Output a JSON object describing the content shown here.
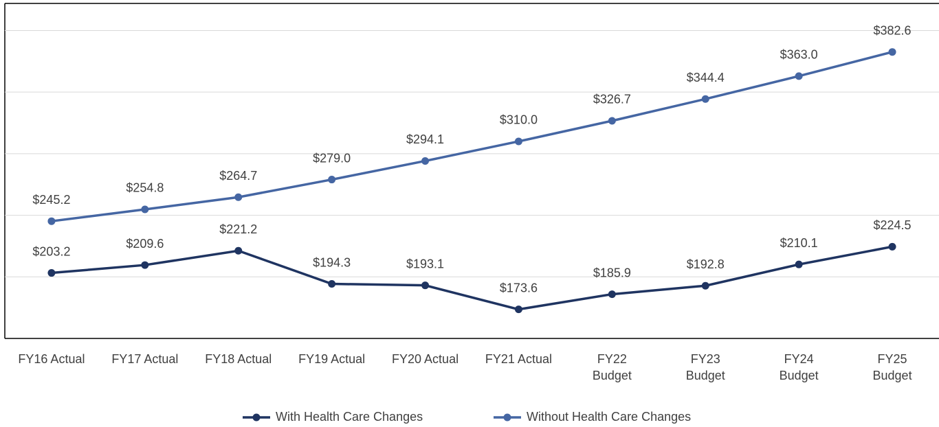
{
  "chart_data": {
    "type": "line",
    "categories": [
      "FY16 Actual",
      "FY17 Actual",
      "FY18 Actual",
      "FY19 Actual",
      "FY20 Actual",
      "FY21 Actual",
      "FY22\nBudget",
      "FY23\nBudget",
      "FY24\nBudget",
      "FY25\nBudget"
    ],
    "series": [
      {
        "name": "With Health Care Changes",
        "color": "#1f3461",
        "values": [
          203.2,
          209.6,
          221.2,
          194.3,
          193.1,
          173.6,
          185.9,
          192.8,
          210.1,
          224.5
        ],
        "value_labels": [
          "$203.2",
          "$209.6",
          "$221.2",
          "$194.3",
          "$193.1",
          "$173.6",
          "$185.9",
          "$192.8",
          "$210.1",
          "$224.5"
        ]
      },
      {
        "name": "Without Health Care Changes",
        "color": "#4566a3",
        "values": [
          245.2,
          254.8,
          264.7,
          279.0,
          294.1,
          310.0,
          326.7,
          344.4,
          363.0,
          382.6
        ],
        "value_labels": [
          "$245.2",
          "$254.8",
          "$264.7",
          "$279.0",
          "$294.1",
          "$310.0",
          "$326.7",
          "$344.4",
          "$363.0",
          "$382.6"
        ]
      }
    ],
    "ylim": [
      150,
      422
    ],
    "yticks": [
      200,
      250,
      300,
      350,
      400
    ],
    "grid": true,
    "legend": "bottom"
  }
}
